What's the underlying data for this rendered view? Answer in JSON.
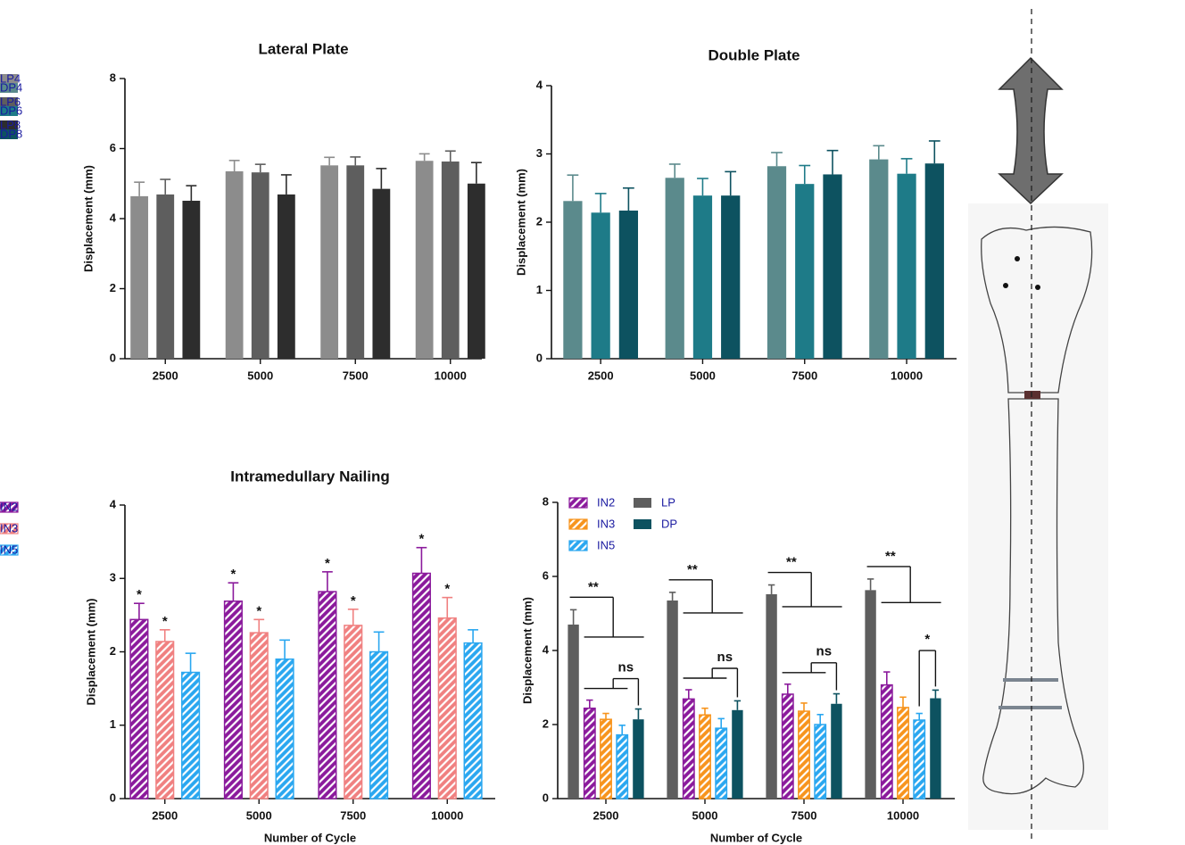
{
  "chart_data": [
    {
      "type": "bar",
      "title": "Lateral Plate",
      "ylabel": "Displacement (mm)",
      "categories": [
        "2500",
        "5000",
        "7500",
        "10000"
      ],
      "ylim": [
        0,
        8
      ],
      "yticks": [
        0,
        2,
        4,
        6,
        8
      ],
      "legend": "upper left",
      "series": [
        {
          "name": "LP4",
          "color": "#8c8c8c",
          "values": [
            4.64,
            5.35,
            5.52,
            5.65
          ],
          "errors": [
            0.4,
            0.31,
            0.23,
            0.2
          ]
        },
        {
          "name": "LP6",
          "color": "#5e5e5e",
          "values": [
            4.69,
            5.32,
            5.52,
            5.63
          ],
          "errors": [
            0.43,
            0.23,
            0.24,
            0.3
          ]
        },
        {
          "name": "LP8",
          "color": "#2d2d2d",
          "values": [
            4.51,
            4.69,
            4.85,
            5.0
          ],
          "errors": [
            0.43,
            0.56,
            0.58,
            0.6
          ]
        }
      ]
    },
    {
      "type": "bar",
      "title": "Double Plate",
      "ylabel": "Displacement (mm)",
      "categories": [
        "2500",
        "5000",
        "7500",
        "10000"
      ],
      "ylim": [
        0,
        4
      ],
      "yticks": [
        0,
        1,
        2,
        3,
        4
      ],
      "legend": "upper left",
      "series": [
        {
          "name": "DP4",
          "color": "#5b8a8c",
          "values": [
            2.31,
            2.65,
            2.82,
            2.92
          ],
          "errors": [
            0.38,
            0.2,
            0.2,
            0.2
          ]
        },
        {
          "name": "DP6",
          "color": "#1e7b88",
          "values": [
            2.14,
            2.39,
            2.56,
            2.71
          ],
          "errors": [
            0.28,
            0.25,
            0.27,
            0.22
          ]
        },
        {
          "name": "DP8",
          "color": "#0d5260",
          "values": [
            2.17,
            2.39,
            2.7,
            2.86
          ],
          "errors": [
            0.33,
            0.35,
            0.35,
            0.33
          ]
        }
      ]
    },
    {
      "type": "bar",
      "title": "Intramedullary Nailing",
      "ylabel": "Displacement (mm)",
      "xlabel": "Number of Cycle",
      "categories": [
        "2500",
        "5000",
        "7500",
        "10000"
      ],
      "ylim": [
        0,
        4
      ],
      "yticks": [
        0,
        1,
        2,
        3,
        4
      ],
      "legend": "upper left",
      "series": [
        {
          "name": "IN2",
          "color": "#8b1a9c",
          "hatch": true,
          "values": [
            2.44,
            2.69,
            2.82,
            3.07
          ],
          "errors": [
            0.22,
            0.25,
            0.27,
            0.35
          ],
          "annotations": [
            "*",
            "*",
            "*",
            "*"
          ]
        },
        {
          "name": "IN3",
          "color": "#f08080",
          "hatch": true,
          "values": [
            2.14,
            2.26,
            2.36,
            2.46
          ],
          "errors": [
            0.16,
            0.18,
            0.22,
            0.28
          ],
          "annotations": [
            "*",
            "*",
            "*",
            "*"
          ]
        },
        {
          "name": "IN5",
          "color": "#2aa7f0",
          "hatch": true,
          "values": [
            1.72,
            1.9,
            2.0,
            2.12
          ],
          "errors": [
            0.26,
            0.26,
            0.27,
            0.18
          ]
        }
      ]
    },
    {
      "type": "bar",
      "ylabel": "Displacement (mm)",
      "xlabel": "Number of Cycle",
      "categories": [
        "2500",
        "5000",
        "7500",
        "10000"
      ],
      "ylim": [
        0,
        8
      ],
      "yticks": [
        0,
        2,
        4,
        6,
        8
      ],
      "legend": "upper left",
      "series": [
        {
          "name": "LP",
          "color": "#5e5e5e",
          "values": [
            4.7,
            5.35,
            5.52,
            5.63
          ],
          "errors": [
            0.4,
            0.22,
            0.25,
            0.3
          ]
        },
        {
          "name": "IN2",
          "color": "#8b1a9c",
          "hatch": true,
          "values": [
            2.44,
            2.69,
            2.82,
            3.07
          ],
          "errors": [
            0.22,
            0.25,
            0.27,
            0.35
          ]
        },
        {
          "name": "IN3",
          "color": "#f7941d",
          "hatch": true,
          "values": [
            2.14,
            2.26,
            2.36,
            2.46
          ],
          "errors": [
            0.16,
            0.18,
            0.22,
            0.28
          ]
        },
        {
          "name": "IN5",
          "color": "#2aa7f0",
          "hatch": true,
          "values": [
            1.72,
            1.9,
            2.0,
            2.12
          ],
          "errors": [
            0.26,
            0.26,
            0.27,
            0.18
          ]
        },
        {
          "name": "DP",
          "color": "#0d5260",
          "values": [
            2.14,
            2.39,
            2.56,
            2.71
          ],
          "errors": [
            0.28,
            0.25,
            0.27,
            0.22
          ]
        }
      ],
      "brackets": [
        [
          "**",
          "ns"
        ],
        [
          "**",
          "ns"
        ],
        [
          "**",
          "ns"
        ],
        [
          "**",
          "*"
        ]
      ]
    }
  ]
}
